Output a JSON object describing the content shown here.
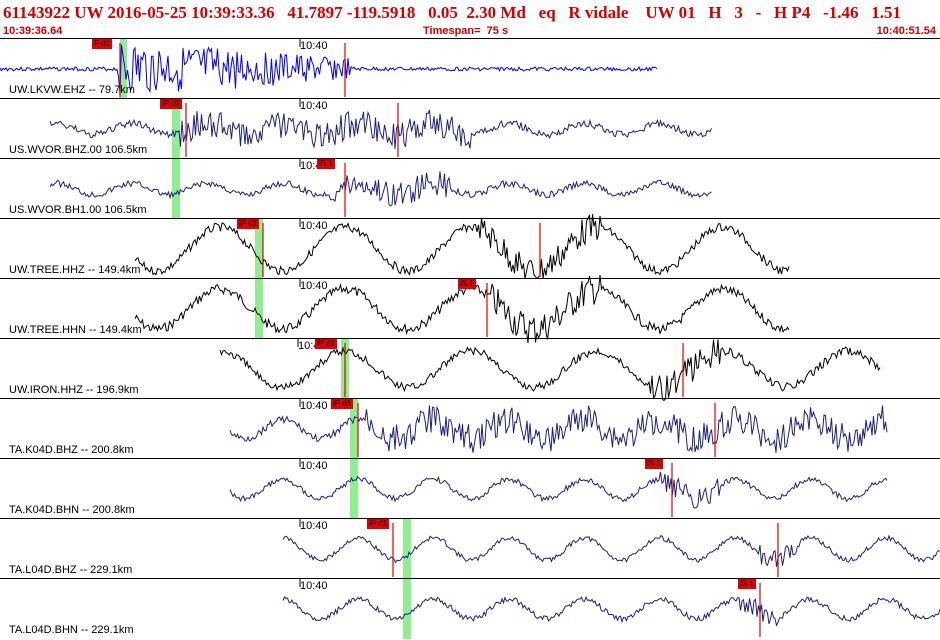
{
  "header": {
    "title": "61143922 UW 2016-05-25 10:39:33.36   41.7897 -119.5918   0.05  2.30 Md   eq   R vidale    UW 01   H   3   -   H P4   -1.46   1.51",
    "start_time": "10:39:36.64",
    "timespan": "Timespan=  75 s",
    "end_time": "10:40:51.54"
  },
  "colors": {
    "header_text": "#d00000",
    "pick_flag": "#e00000",
    "phase_window": "#90ee90",
    "blue_trace": "#0000ff",
    "navy_trace": "#202080",
    "black_trace": "#000000"
  },
  "tick_label": "10:40",
  "panels": [
    {
      "label": "UW.LKVW.EHZ -- 79.7km",
      "pick": "P d1",
      "color": "blue"
    },
    {
      "label": "US.WVOR.BHZ.00 106.5km",
      "pick": "iP d1",
      "color": "navy"
    },
    {
      "label": "US.WVOR.BH1.00 106.5km",
      "pick": "iS 1",
      "color": "navy"
    },
    {
      "label": "UW.TREE.HHZ -- 149.4km",
      "pick": "iP d1",
      "color": "black"
    },
    {
      "label": "UW.TREE.HHN -- 149.4km",
      "pick": "iS 1",
      "color": "black"
    },
    {
      "label": "UW.IRON.HHZ -- 196.9km",
      "pick": "iP d1",
      "color": "black"
    },
    {
      "label": "TA.K04D.BHZ -- 200.8km",
      "pick": "iP d1",
      "color": "navy"
    },
    {
      "label": "TA.K04D.BHN -- 200.8km",
      "pick": "iS 1",
      "color": "navy"
    },
    {
      "label": "TA.L04D.BHZ -- 229.1km",
      "pick": "iP d1",
      "color": "navy"
    },
    {
      "label": "TA.L04D.BHN -- 229.1km",
      "pick": "iS 1",
      "color": "navy"
    }
  ]
}
